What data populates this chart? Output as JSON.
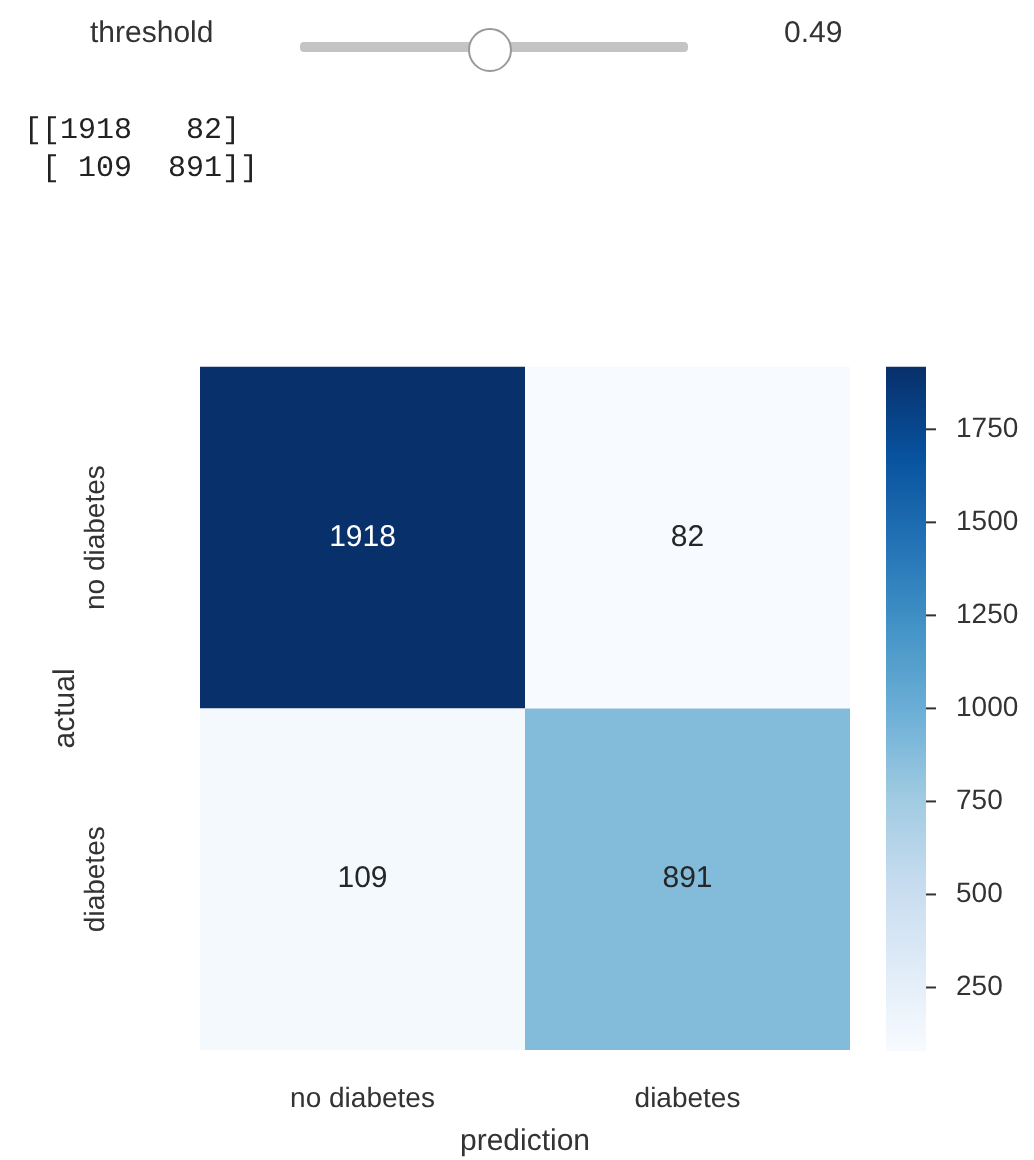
{
  "chart_data": {
    "type": "heatmap",
    "xlabel": "prediction",
    "ylabel": "actual",
    "categories": [
      "no diabetes",
      "diabetes"
    ],
    "y_categories": [
      "no diabetes",
      "diabetes"
    ],
    "cells": [
      [
        1918,
        82
      ],
      [
        109,
        891
      ]
    ],
    "data_labels": true,
    "clim": [
      82,
      1918
    ],
    "cticks": [
      250,
      500,
      750,
      1000,
      1250,
      1500,
      1750
    ],
    "annotations": [
      "threshold",
      "0.49",
      "[[1918   82]\n [ 109  891]]"
    ]
  }
}
